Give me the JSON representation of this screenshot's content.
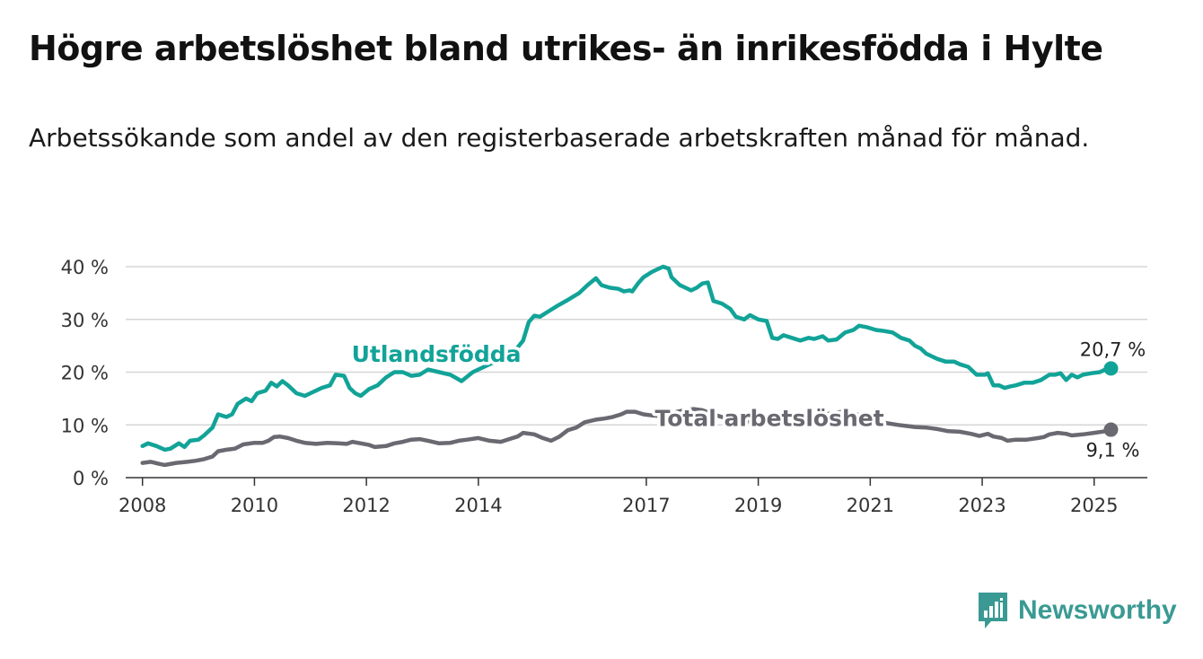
{
  "title": "Högre arbetslöshet bland utrikes- än inrikesfödda i Hylte",
  "subtitle": "Arbetssökande som andel av den registerbaserade arbetskraften månad för månad.",
  "brand": "Newsworthy",
  "colors": {
    "utlandsfodda": "#12a398",
    "total": "#6a6870",
    "grid": "#d6d6d6",
    "brand": "#3a9a93"
  },
  "chart_data": {
    "type": "line",
    "title": "Högre arbetslöshet bland utrikes- än inrikesfödda i Hylte",
    "subtitle": "Arbetssökande som andel av den registerbaserade arbetskraften månad för månad.",
    "xlabel": "",
    "ylabel": "",
    "xlim": [
      2007.7,
      2025.95
    ],
    "ylim": [
      0,
      40
    ],
    "yticks": [
      0,
      10,
      20,
      30,
      40
    ],
    "ytick_labels": [
      "0 %",
      "10 %",
      "20 %",
      "30 %",
      "40 %"
    ],
    "xticks": [
      2008,
      2010,
      2012,
      2014,
      2017,
      2019,
      2021,
      2023,
      2025
    ],
    "xtick_labels": [
      "2008",
      "2010",
      "2012",
      "2014",
      "2017",
      "2019",
      "2021",
      "2023",
      "2025"
    ],
    "grid": "horizontal",
    "legend": "direct labels on lines",
    "series": [
      {
        "name": "Utlandsfödda",
        "end_label": "20,7 %",
        "points": [
          [
            2008.0,
            6.0
          ],
          [
            2008.1,
            6.5
          ],
          [
            2008.25,
            6.0
          ],
          [
            2008.4,
            5.3
          ],
          [
            2008.5,
            5.5
          ],
          [
            2008.65,
            6.5
          ],
          [
            2008.75,
            5.8
          ],
          [
            2008.85,
            7.0
          ],
          [
            2009.0,
            7.2
          ],
          [
            2009.1,
            8.0
          ],
          [
            2009.25,
            9.5
          ],
          [
            2009.35,
            12.0
          ],
          [
            2009.5,
            11.5
          ],
          [
            2009.6,
            12.0
          ],
          [
            2009.7,
            14.0
          ],
          [
            2009.85,
            15.0
          ],
          [
            2009.95,
            14.5
          ],
          [
            2010.05,
            16.0
          ],
          [
            2010.2,
            16.5
          ],
          [
            2010.3,
            18.0
          ],
          [
            2010.4,
            17.3
          ],
          [
            2010.5,
            18.3
          ],
          [
            2010.6,
            17.5
          ],
          [
            2010.75,
            16.0
          ],
          [
            2010.9,
            15.5
          ],
          [
            2011.0,
            16.0
          ],
          [
            2011.1,
            16.5
          ],
          [
            2011.2,
            17.0
          ],
          [
            2011.35,
            17.5
          ],
          [
            2011.45,
            19.5
          ],
          [
            2011.6,
            19.3
          ],
          [
            2011.7,
            17.0
          ],
          [
            2011.8,
            16.0
          ],
          [
            2011.9,
            15.5
          ],
          [
            2012.05,
            16.8
          ],
          [
            2012.2,
            17.5
          ],
          [
            2012.35,
            19.0
          ],
          [
            2012.5,
            20.0
          ],
          [
            2012.65,
            20.0
          ],
          [
            2012.8,
            19.3
          ],
          [
            2012.95,
            19.5
          ],
          [
            2013.1,
            20.5
          ],
          [
            2013.3,
            20.0
          ],
          [
            2013.5,
            19.5
          ],
          [
            2013.7,
            18.3
          ],
          [
            2013.9,
            20.0
          ],
          [
            2014.1,
            21.0
          ],
          [
            2014.3,
            22.0
          ],
          [
            2014.5,
            23.0
          ],
          [
            2014.65,
            24.0
          ],
          [
            2014.8,
            26.0
          ],
          [
            2014.9,
            29.5
          ],
          [
            2015.0,
            30.7
          ],
          [
            2015.1,
            30.5
          ],
          [
            2015.25,
            31.5
          ],
          [
            2015.4,
            32.5
          ],
          [
            2015.6,
            33.7
          ],
          [
            2015.8,
            35.0
          ],
          [
            2015.95,
            36.5
          ],
          [
            2016.1,
            37.8
          ],
          [
            2016.2,
            36.5
          ],
          [
            2016.35,
            36.0
          ],
          [
            2016.5,
            35.8
          ],
          [
            2016.6,
            35.3
          ],
          [
            2016.7,
            35.5
          ],
          [
            2016.75,
            35.3
          ],
          [
            2016.85,
            36.8
          ],
          [
            2016.95,
            38.0
          ],
          [
            2017.1,
            39.0
          ],
          [
            2017.2,
            39.5
          ],
          [
            2017.3,
            40.0
          ],
          [
            2017.4,
            39.6
          ],
          [
            2017.45,
            38.0
          ],
          [
            2017.6,
            36.5
          ],
          [
            2017.7,
            36.0
          ],
          [
            2017.8,
            35.5
          ],
          [
            2017.9,
            36.0
          ],
          [
            2018.0,
            36.8
          ],
          [
            2018.1,
            37.0
          ],
          [
            2018.2,
            33.5
          ],
          [
            2018.35,
            33.0
          ],
          [
            2018.5,
            32.0
          ],
          [
            2018.6,
            30.5
          ],
          [
            2018.75,
            30.0
          ],
          [
            2018.85,
            30.8
          ],
          [
            2019.0,
            30.0
          ],
          [
            2019.15,
            29.7
          ],
          [
            2019.25,
            26.5
          ],
          [
            2019.35,
            26.3
          ],
          [
            2019.45,
            27.0
          ],
          [
            2019.6,
            26.5
          ],
          [
            2019.75,
            26.0
          ],
          [
            2019.9,
            26.5
          ],
          [
            2020.0,
            26.3
          ],
          [
            2020.15,
            26.8
          ],
          [
            2020.25,
            26.0
          ],
          [
            2020.4,
            26.2
          ],
          [
            2020.55,
            27.5
          ],
          [
            2020.7,
            28.0
          ],
          [
            2020.8,
            28.8
          ],
          [
            2020.95,
            28.5
          ],
          [
            2021.1,
            28.0
          ],
          [
            2021.25,
            27.8
          ],
          [
            2021.4,
            27.5
          ],
          [
            2021.55,
            26.5
          ],
          [
            2021.7,
            26.0
          ],
          [
            2021.8,
            25.0
          ],
          [
            2021.9,
            24.5
          ],
          [
            2022.0,
            23.5
          ],
          [
            2022.1,
            23.0
          ],
          [
            2022.2,
            22.5
          ],
          [
            2022.35,
            22.0
          ],
          [
            2022.5,
            22.0
          ],
          [
            2022.6,
            21.5
          ],
          [
            2022.75,
            21.0
          ],
          [
            2022.9,
            19.5
          ],
          [
            2023.05,
            19.5
          ],
          [
            2023.1,
            19.8
          ],
          [
            2023.2,
            17.5
          ],
          [
            2023.3,
            17.5
          ],
          [
            2023.4,
            17.0
          ],
          [
            2023.5,
            17.3
          ],
          [
            2023.6,
            17.5
          ],
          [
            2023.75,
            18.0
          ],
          [
            2023.9,
            18.0
          ],
          [
            2024.05,
            18.5
          ],
          [
            2024.2,
            19.5
          ],
          [
            2024.3,
            19.5
          ],
          [
            2024.4,
            19.8
          ],
          [
            2024.5,
            18.5
          ],
          [
            2024.6,
            19.5
          ],
          [
            2024.7,
            19.0
          ],
          [
            2024.8,
            19.5
          ],
          [
            2024.95,
            19.8
          ],
          [
            2025.1,
            20.0
          ],
          [
            2025.2,
            20.5
          ],
          [
            2025.3,
            20.7
          ]
        ]
      },
      {
        "name": "Total arbetslöshet",
        "end_label": "9,1 %",
        "points": [
          [
            2008.0,
            2.8
          ],
          [
            2008.15,
            3.0
          ],
          [
            2008.3,
            2.6
          ],
          [
            2008.4,
            2.4
          ],
          [
            2008.6,
            2.8
          ],
          [
            2008.8,
            3.0
          ],
          [
            2008.95,
            3.2
          ],
          [
            2009.1,
            3.5
          ],
          [
            2009.25,
            4.0
          ],
          [
            2009.35,
            5.0
          ],
          [
            2009.5,
            5.3
          ],
          [
            2009.65,
            5.5
          ],
          [
            2009.8,
            6.3
          ],
          [
            2010.0,
            6.6
          ],
          [
            2010.15,
            6.6
          ],
          [
            2010.25,
            7.0
          ],
          [
            2010.35,
            7.7
          ],
          [
            2010.45,
            7.8
          ],
          [
            2010.6,
            7.5
          ],
          [
            2010.75,
            7.0
          ],
          [
            2010.9,
            6.6
          ],
          [
            2011.1,
            6.4
          ],
          [
            2011.3,
            6.6
          ],
          [
            2011.5,
            6.5
          ],
          [
            2011.65,
            6.4
          ],
          [
            2011.75,
            6.8
          ],
          [
            2011.9,
            6.5
          ],
          [
            2012.05,
            6.2
          ],
          [
            2012.15,
            5.8
          ],
          [
            2012.35,
            6.0
          ],
          [
            2012.5,
            6.5
          ],
          [
            2012.65,
            6.8
          ],
          [
            2012.8,
            7.2
          ],
          [
            2012.95,
            7.3
          ],
          [
            2013.1,
            7.0
          ],
          [
            2013.3,
            6.5
          ],
          [
            2013.5,
            6.6
          ],
          [
            2013.65,
            7.0
          ],
          [
            2013.8,
            7.2
          ],
          [
            2014.0,
            7.5
          ],
          [
            2014.2,
            7.0
          ],
          [
            2014.4,
            6.8
          ],
          [
            2014.55,
            7.3
          ],
          [
            2014.7,
            7.8
          ],
          [
            2014.8,
            8.5
          ],
          [
            2015.0,
            8.2
          ],
          [
            2015.15,
            7.5
          ],
          [
            2015.3,
            7.0
          ],
          [
            2015.45,
            7.8
          ],
          [
            2015.6,
            9.0
          ],
          [
            2015.75,
            9.5
          ],
          [
            2015.9,
            10.5
          ],
          [
            2016.1,
            11.0
          ],
          [
            2016.25,
            11.2
          ],
          [
            2016.4,
            11.5
          ],
          [
            2016.55,
            12.0
          ],
          [
            2016.65,
            12.5
          ],
          [
            2016.8,
            12.5
          ],
          [
            2016.95,
            12.0
          ],
          [
            2017.1,
            11.8
          ],
          [
            2017.25,
            11.7
          ],
          [
            2017.4,
            11.6
          ],
          [
            2017.55,
            12.5
          ],
          [
            2017.7,
            12.8
          ],
          [
            2017.85,
            13.0
          ],
          [
            2018.0,
            12.8
          ],
          [
            2018.2,
            12.0
          ],
          [
            2018.5,
            11.0
          ],
          [
            2018.8,
            10.6
          ],
          [
            2019.0,
            11.0
          ],
          [
            2019.3,
            11.0
          ],
          [
            2019.6,
            10.8
          ],
          [
            2019.9,
            11.2
          ],
          [
            2020.2,
            12.0
          ],
          [
            2020.5,
            12.5
          ],
          [
            2020.7,
            12.2
          ],
          [
            2020.9,
            11.5
          ],
          [
            2021.2,
            10.5
          ],
          [
            2021.5,
            10.0
          ],
          [
            2021.8,
            9.6
          ],
          [
            2022.0,
            9.5
          ],
          [
            2022.2,
            9.2
          ],
          [
            2022.4,
            8.8
          ],
          [
            2022.6,
            8.7
          ],
          [
            2022.8,
            8.3
          ],
          [
            2022.95,
            7.9
          ],
          [
            2023.1,
            8.3
          ],
          [
            2023.2,
            7.8
          ],
          [
            2023.35,
            7.5
          ],
          [
            2023.45,
            7.0
          ],
          [
            2023.6,
            7.2
          ],
          [
            2023.8,
            7.2
          ],
          [
            2024.0,
            7.5
          ],
          [
            2024.1,
            7.7
          ],
          [
            2024.2,
            8.2
          ],
          [
            2024.35,
            8.5
          ],
          [
            2024.5,
            8.3
          ],
          [
            2024.6,
            8.0
          ],
          [
            2024.8,
            8.2
          ],
          [
            2025.0,
            8.5
          ],
          [
            2025.2,
            8.8
          ],
          [
            2025.3,
            9.1
          ]
        ]
      }
    ],
    "annotations": [
      {
        "text": "Utlandsfödda",
        "series": "Utlandsfödda",
        "x": 2013.25,
        "y": 22.0
      },
      {
        "text": "Total arbetslöshet",
        "series": "Total arbetslöshet",
        "x": 2019.2,
        "y": 9.8
      }
    ]
  }
}
